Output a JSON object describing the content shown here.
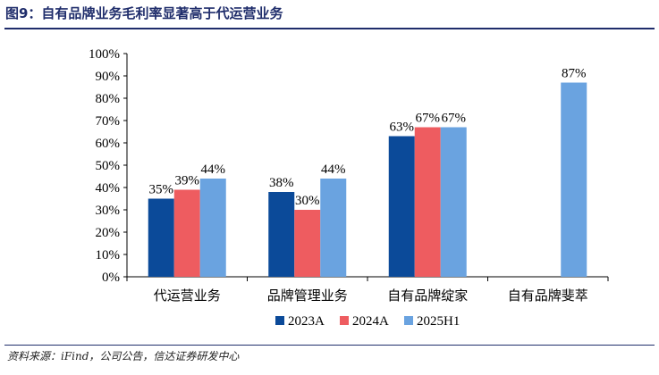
{
  "header": {
    "title": "图9：自有品牌业务毛利率显著高于代运营业务"
  },
  "footer": {
    "source": "资料来源：iFind，公司公告，信达证券研发中心"
  },
  "colors": {
    "2023A": "#0b4a99",
    "2024A": "#ee5c60",
    "2025H1": "#6aa3e0",
    "rule": "#1f2d6b"
  },
  "chart_data": {
    "type": "bar",
    "title": "",
    "xlabel": "",
    "ylabel": "",
    "ylim": [
      0,
      100
    ],
    "yticks": [
      "0%",
      "10%",
      "20%",
      "30%",
      "40%",
      "50%",
      "60%",
      "70%",
      "80%",
      "90%",
      "100%"
    ],
    "categories": [
      "代运营业务",
      "品牌管理业务",
      "自有品牌绽家",
      "自有品牌斐萃"
    ],
    "series": [
      {
        "name": "2023A",
        "values": [
          35,
          38,
          63,
          null
        ],
        "labels": [
          "35%",
          "38%",
          "63%",
          ""
        ]
      },
      {
        "name": "2024A",
        "values": [
          39,
          30,
          67,
          null
        ],
        "labels": [
          "39%",
          "30%",
          "67%",
          ""
        ]
      },
      {
        "name": "2025H1",
        "values": [
          44,
          44,
          67,
          87
        ],
        "labels": [
          "44%",
          "44%",
          "67%",
          "87%"
        ]
      }
    ],
    "legend_position": "bottom",
    "grid": false
  }
}
